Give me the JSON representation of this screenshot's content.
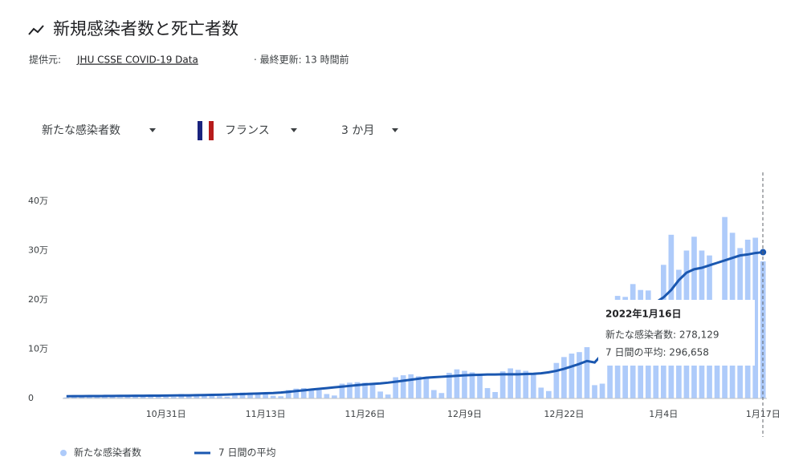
{
  "header": {
    "title": "新規感染者数と死亡者数",
    "source_prefix": "提供元:",
    "source_link": "JHU CSSE COVID-19 Data",
    "source_suffix": "· 最終更新: 13 時間前"
  },
  "controls": {
    "metric": "新たな感染者数",
    "country": "フランス",
    "range": "3 か月"
  },
  "tooltip": {
    "date": "2022年1月16日",
    "cases": "新たな感染者数: 278,129",
    "average": "7 日間の平均: 296,658"
  },
  "chart_data": {
    "type": "bar",
    "categories": [
      null,
      null,
      null,
      null,
      null,
      null,
      null,
      null,
      null,
      null,
      null,
      null,
      null,
      "10月31日",
      null,
      null,
      null,
      null,
      null,
      null,
      null,
      null,
      null,
      null,
      null,
      null,
      "11月13日",
      null,
      null,
      null,
      null,
      null,
      null,
      null,
      null,
      null,
      null,
      null,
      null,
      "11月26日",
      null,
      null,
      null,
      null,
      null,
      null,
      null,
      null,
      null,
      null,
      null,
      null,
      "12月9日",
      null,
      null,
      null,
      null,
      null,
      null,
      null,
      null,
      null,
      null,
      null,
      null,
      "12月22日",
      null,
      null,
      null,
      null,
      null,
      null,
      null,
      null,
      null,
      null,
      null,
      null,
      "1月4日",
      null,
      null,
      null,
      null,
      null,
      null,
      null,
      null,
      null,
      null,
      null,
      null,
      "1月17日"
    ],
    "series": [
      {
        "name": "新たな感染者数",
        "color": "#aecbfa",
        "values": [
          2000,
          6500,
          6000,
          5800,
          5500,
          5000,
          4000,
          2500,
          7500,
          7000,
          6800,
          6200,
          5500,
          3500,
          3000,
          9000,
          8500,
          8000,
          7500,
          6500,
          4500,
          3500,
          11000,
          12000,
          11500,
          10000,
          8500,
          5500,
          4500,
          17000,
          20000,
          21000,
          19000,
          17000,
          9000,
          6000,
          30000,
          32000,
          33000,
          32000,
          28000,
          14000,
          8000,
          43000,
          47000,
          49000,
          45000,
          42000,
          17000,
          11000,
          52000,
          59000,
          56000,
          53000,
          48000,
          21000,
          13000,
          55000,
          61000,
          58000,
          56000,
          50000,
          22000,
          15000,
          72000,
          84000,
          91000,
          94000,
          104000,
          27000,
          30000,
          180000,
          208000,
          206000,
          232000,
          220000,
          219000,
          67000,
          271000,
          332000,
          261000,
          300000,
          328000,
          300000,
          290000,
          102000,
          368000,
          336000,
          305000,
          322000,
          326000,
          278129
        ]
      },
      {
        "name": "7 日間の平均",
        "color": "#1a57b0",
        "values": [
          4500,
          4600,
          4700,
          4800,
          4900,
          5000,
          5100,
          5200,
          5300,
          5400,
          5500,
          5600,
          5700,
          5800,
          6000,
          6200,
          6400,
          6700,
          7000,
          7300,
          7600,
          8000,
          8500,
          9000,
          9500,
          10000,
          10500,
          11000,
          12000,
          13500,
          15000,
          16500,
          18000,
          19500,
          21000,
          22500,
          24000,
          25500,
          27000,
          28500,
          29500,
          30500,
          32000,
          34000,
          36000,
          38000,
          40000,
          42000,
          43000,
          44000,
          45000,
          46000,
          47000,
          47500,
          48000,
          48500,
          48500,
          49000,
          49000,
          49000,
          49500,
          50000,
          51000,
          53000,
          56000,
          60000,
          65000,
          70000,
          76000,
          73000,
          90000,
          110000,
          130000,
          150000,
          165000,
          180000,
          190000,
          195000,
          205000,
          220000,
          240000,
          255000,
          262000,
          265000,
          270000,
          275000,
          280000,
          285000,
          290000,
          292000,
          295000,
          296658
        ]
      }
    ],
    "ylim": [
      0,
      440000
    ],
    "yticks": [
      0,
      {
        "value": 100000,
        "label": "10万"
      },
      {
        "value": 200000,
        "label": "20万"
      },
      {
        "value": 300000,
        "label": "30万"
      },
      {
        "value": 400000,
        "label": "40万"
      }
    ],
    "grid": false
  }
}
